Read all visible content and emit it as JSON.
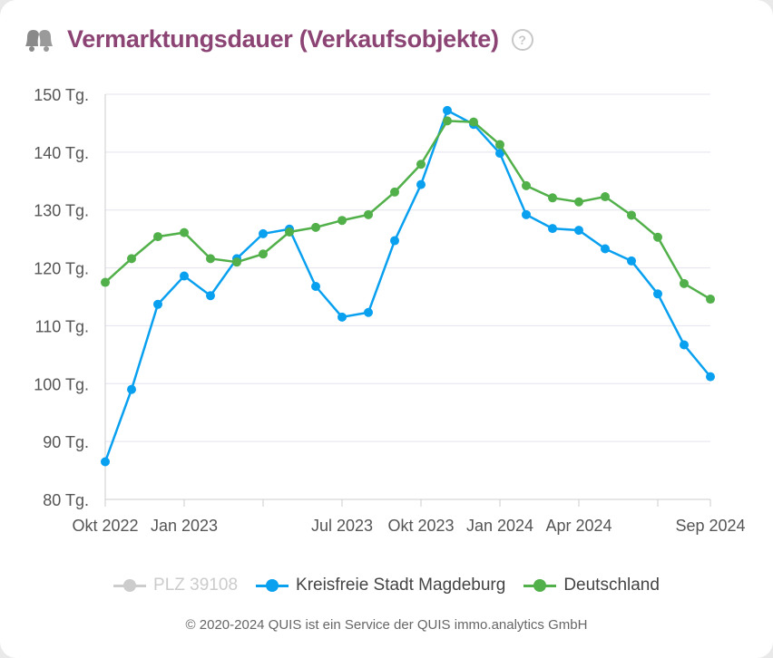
{
  "header": {
    "title": "Vermarktungsdauer (Verkaufsobjekte)",
    "icon": "bells-icon",
    "help_icon": "?"
  },
  "chart_data": {
    "type": "line",
    "title": "Vermarktungsdauer (Verkaufsobjekte)",
    "ylim": [
      80,
      150
    ],
    "y_ticks": [
      "80 Tg.",
      "90 Tg.",
      "100 Tg.",
      "110 Tg.",
      "120 Tg.",
      "130 Tg.",
      "140 Tg.",
      "150 Tg."
    ],
    "y_tick_values": [
      80,
      90,
      100,
      110,
      120,
      130,
      140,
      150
    ],
    "x_tick_labels": [
      {
        "index": 0,
        "label": "Okt 2022"
      },
      {
        "index": 3,
        "label": "Jan 2023"
      },
      {
        "index": 6,
        "label": ""
      },
      {
        "index": 9,
        "label": "Jul 2023"
      },
      {
        "index": 12,
        "label": "Okt 2023"
      },
      {
        "index": 15,
        "label": "Jan 2024"
      },
      {
        "index": 18,
        "label": "Apr 2024"
      },
      {
        "index": 21,
        "label": ""
      },
      {
        "index": 23,
        "label": "Sep 2024"
      }
    ],
    "grid": true,
    "legend_position": "bottom",
    "series": [
      {
        "name": "PLZ 39108",
        "color": "#cccccc",
        "hidden": true,
        "values": []
      },
      {
        "name": "Kreisfreie Stadt Magdeburg",
        "color": "#0aa0f0",
        "values": [
          86.5,
          99,
          113.7,
          118.6,
          115.2,
          121.6,
          125.9,
          126.7,
          116.8,
          111.5,
          112.3,
          124.7,
          134.4,
          147.2,
          144.8,
          139.8,
          129.2,
          126.8,
          126.5,
          123.3,
          121.2,
          115.5,
          106.7,
          101.2
        ]
      },
      {
        "name": "Deutschland",
        "color": "#52b04a",
        "values": [
          117.5,
          121.6,
          125.4,
          126.1,
          121.6,
          121.0,
          122.4,
          126.2,
          127.0,
          128.2,
          129.2,
          133.1,
          137.9,
          145.4,
          145.2,
          141.3,
          134.2,
          132.1,
          131.4,
          132.3,
          129.1,
          125.3,
          117.3,
          114.6
        ]
      }
    ]
  },
  "footer": "© 2020-2024 QUIS ist ein Service der QUIS immo.analytics GmbH"
}
